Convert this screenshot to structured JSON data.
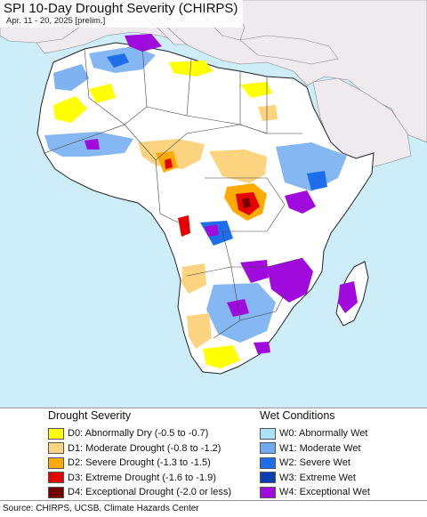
{
  "map": {
    "title": "SPI 10-Day Drought Severity (CHIRPS)",
    "subtitle": "Apr. 11 - 20, 2025 [prelim.]",
    "colors": {
      "ocean": "#cdeef8",
      "africa_land": "#ffffff",
      "other_land": "#eeeaee",
      "borders": "#555555"
    }
  },
  "legend": {
    "drought": {
      "heading": "Drought Severity",
      "items": [
        {
          "label": "D0: Abnormally Dry (-0.5 to -0.7)",
          "color": "#ffff00"
        },
        {
          "label": "D1: Moderate Drought (-0.8 to -1.2)",
          "color": "#fcd37f"
        },
        {
          "label": "D2: Severe Drought (-1.3 to -1.5)",
          "color": "#ffaa00"
        },
        {
          "label": "D3: Extreme Drought (-1.6 to -1.9)",
          "color": "#e60000"
        },
        {
          "label": "D4: Exceptional Drought (-2.0 or less)",
          "color": "#730000"
        }
      ]
    },
    "wet": {
      "heading": "Wet Conditions",
      "items": [
        {
          "label": "W0: Abnormally Wet",
          "color": "#aae2fa"
        },
        {
          "label": "W1: Moderate Wet",
          "color": "#70aaf0"
        },
        {
          "label": "W2: Severe Wet",
          "color": "#1e6eeb"
        },
        {
          "label": "W3: Extreme Wet",
          "color": "#0a3cb4"
        },
        {
          "label": "W4: Exceptional Wet",
          "color": "#a00adc"
        }
      ]
    }
  },
  "source": {
    "text": "Source: CHIRPS, UCSB, Climate Hazards Center"
  }
}
